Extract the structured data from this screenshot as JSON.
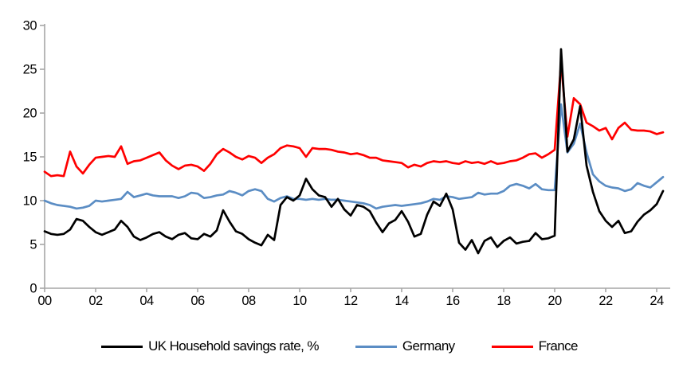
{
  "chart_data": {
    "type": "line",
    "title": "",
    "xlabel": "",
    "ylabel": "",
    "ylim": [
      0,
      30
    ],
    "xlim_years": [
      2000,
      2024.6
    ],
    "x_start_year": 2000,
    "x_step_years": 0.25,
    "frequency": "quarterly",
    "grid": "off",
    "legend_position": "bottom-center",
    "axis_color": "#a6a6a6",
    "y_tick_labels": [
      "0",
      "5",
      "10",
      "15",
      "20",
      "25",
      "30"
    ],
    "y_tick_values": [
      0,
      5,
      10,
      15,
      20,
      25,
      30
    ],
    "x_tick_labels": [
      "00",
      "02",
      "04",
      "06",
      "08",
      "10",
      "12",
      "14",
      "16",
      "18",
      "20",
      "22",
      "24"
    ],
    "x_tick_years": [
      2000,
      2002,
      2004,
      2006,
      2008,
      2010,
      2012,
      2014,
      2016,
      2018,
      2020,
      2022,
      2024
    ],
    "series": [
      {
        "name": "UK Household savings rate, %",
        "color": "#000000",
        "values": [
          6.5,
          6.2,
          6.1,
          6.2,
          6.7,
          7.9,
          7.7,
          7.0,
          6.4,
          6.1,
          6.4,
          6.7,
          7.7,
          7.0,
          5.9,
          5.5,
          5.8,
          6.2,
          6.4,
          5.9,
          5.6,
          6.1,
          6.3,
          5.7,
          5.6,
          6.2,
          5.9,
          6.6,
          8.9,
          7.6,
          6.5,
          6.2,
          5.6,
          5.2,
          4.9,
          6.1,
          5.5,
          9.5,
          10.4,
          10.0,
          10.6,
          12.5,
          11.3,
          10.6,
          10.4,
          9.3,
          10.2,
          9.0,
          8.3,
          9.5,
          9.3,
          8.8,
          7.5,
          6.4,
          7.4,
          7.8,
          8.8,
          7.6,
          5.9,
          6.2,
          8.4,
          9.9,
          9.4,
          10.8,
          9.0,
          5.2,
          4.4,
          5.5,
          4.0,
          5.4,
          5.8,
          4.7,
          5.4,
          5.8,
          5.1,
          5.3,
          5.4,
          6.3,
          5.6,
          5.7,
          6.0,
          27.3,
          15.6,
          17.0,
          20.8,
          14.0,
          11.0,
          8.8,
          7.7,
          7.0,
          7.7,
          6.3,
          6.5,
          7.6,
          8.4,
          8.9,
          9.6,
          11.1
        ]
      },
      {
        "name": "Germany",
        "color": "#5b8dc4",
        "values": [
          10.0,
          9.7,
          9.5,
          9.4,
          9.3,
          9.1,
          9.2,
          9.4,
          10.0,
          9.9,
          10.0,
          10.1,
          10.2,
          11.0,
          10.4,
          10.6,
          10.8,
          10.6,
          10.5,
          10.5,
          10.5,
          10.3,
          10.5,
          10.9,
          10.8,
          10.3,
          10.4,
          10.6,
          10.7,
          11.1,
          10.9,
          10.6,
          11.1,
          11.3,
          11.1,
          10.2,
          9.9,
          10.3,
          10.5,
          10.2,
          10.2,
          10.1,
          10.2,
          10.1,
          10.2,
          10.1,
          10.1,
          10.0,
          9.9,
          9.8,
          9.7,
          9.5,
          9.1,
          9.3,
          9.4,
          9.5,
          9.4,
          9.5,
          9.6,
          9.7,
          9.9,
          10.2,
          10.1,
          10.5,
          10.4,
          10.2,
          10.3,
          10.4,
          10.9,
          10.7,
          10.8,
          10.8,
          11.1,
          11.7,
          11.9,
          11.7,
          11.4,
          11.9,
          11.3,
          11.2,
          11.2,
          21.0,
          15.5,
          16.5,
          18.8,
          15.5,
          13.0,
          12.2,
          11.7,
          11.5,
          11.4,
          11.1,
          11.3,
          12.0,
          11.7,
          11.5,
          12.1,
          12.7
        ]
      },
      {
        "name": "France",
        "color": "#ff0000",
        "values": [
          13.3,
          12.8,
          12.9,
          12.8,
          15.6,
          13.9,
          13.1,
          14.1,
          14.9,
          15.0,
          15.1,
          15.0,
          16.2,
          14.2,
          14.5,
          14.6,
          14.9,
          15.2,
          15.5,
          14.6,
          14.0,
          13.6,
          14.0,
          14.1,
          13.9,
          13.4,
          14.2,
          15.3,
          15.9,
          15.5,
          15.0,
          14.7,
          15.1,
          14.9,
          14.3,
          14.9,
          15.3,
          16.0,
          16.3,
          16.2,
          16.0,
          15.0,
          16.0,
          15.9,
          15.9,
          15.8,
          15.6,
          15.5,
          15.3,
          15.4,
          15.2,
          14.9,
          14.9,
          14.6,
          14.5,
          14.4,
          14.3,
          13.8,
          14.1,
          13.9,
          14.3,
          14.5,
          14.4,
          14.5,
          14.3,
          14.2,
          14.5,
          14.3,
          14.4,
          14.2,
          14.5,
          14.2,
          14.3,
          14.5,
          14.6,
          14.9,
          15.3,
          15.4,
          14.9,
          15.3,
          15.8,
          25.8,
          17.3,
          21.7,
          21.0,
          18.9,
          18.5,
          18.0,
          18.3,
          17.0,
          18.3,
          18.9,
          18.1,
          18.0,
          18.0,
          17.9,
          17.6,
          17.8
        ]
      }
    ]
  }
}
